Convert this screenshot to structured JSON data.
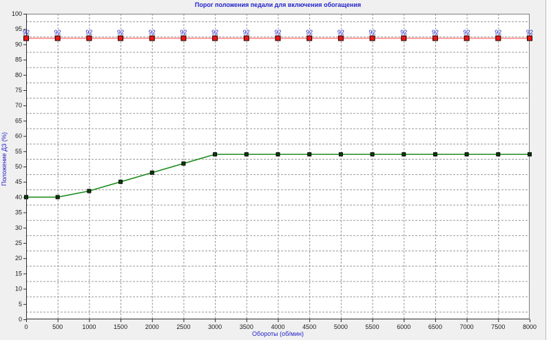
{
  "window": {
    "background_color": "#f0f0f0",
    "plot_background_color": "#ffffff"
  },
  "palette": {
    "title_color": "#2323cb",
    "axis_title_color": "#2323cb",
    "tick_label_color": "#1a1a1a",
    "axis_line_color": "#2b2b2b",
    "frame_color": "#7d7d7d",
    "grid_color": "#979797",
    "point_label_color": "#2222c8"
  },
  "chart_data": {
    "type": "line",
    "title": "Порог положения педали для включения обогащения",
    "xlabel": "Обороты (об/мин)",
    "ylabel": "Положение ДЗ (%)",
    "xlim": [
      0,
      8000
    ],
    "ylim": [
      0,
      100
    ],
    "x_tick_step": 500,
    "y_tick_step": 5,
    "grid": {
      "style": "dashed",
      "color": "#979797",
      "horizontal_offset": 2.5
    },
    "legend": "none",
    "x": [
      0,
      500,
      1000,
      1500,
      2000,
      2500,
      3000,
      3500,
      4000,
      4500,
      5000,
      5500,
      6000,
      6500,
      7000,
      7500,
      8000
    ],
    "series": [
      {
        "name": "enrichment-threshold-upper",
        "values": [
          92,
          92,
          92,
          92,
          92,
          92,
          92,
          92,
          92,
          92,
          92,
          92,
          92,
          92,
          92,
          92,
          92
        ],
        "line_color": "#ff8585",
        "line_width": 1.6,
        "marker": "square",
        "marker_size": 7,
        "marker_fill": "#e81717",
        "marker_border": "#1c0000",
        "show_point_labels": true,
        "point_label_color": "#2222c8"
      },
      {
        "name": "pedal-position-threshold",
        "values": [
          40,
          40,
          42,
          45,
          48,
          51,
          54,
          54,
          54,
          54,
          54,
          54,
          54,
          54,
          54,
          54,
          54
        ],
        "line_color": "#1f8c1f",
        "line_width": 1.6,
        "marker": "square",
        "marker_size": 5,
        "marker_fill": "#0d3d0d",
        "marker_border": "#000000",
        "show_point_labels": false,
        "point_label_color": "#2222c8"
      }
    ]
  }
}
